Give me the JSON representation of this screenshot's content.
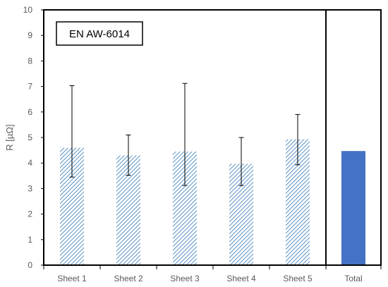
{
  "chart_data": {
    "type": "bar",
    "ylabel": "R [µΩ]",
    "annotation": "EN AW-6014",
    "ylim": [
      0,
      10
    ],
    "yticks": [
      0,
      1,
      2,
      3,
      4,
      5,
      6,
      7,
      8,
      9,
      10
    ],
    "categories": [
      "Sheet 1",
      "Sheet 2",
      "Sheet 3",
      "Sheet 4",
      "Sheet 5",
      "Total"
    ],
    "values": [
      4.6,
      4.3,
      4.45,
      3.97,
      4.93,
      4.47
    ],
    "error_low": [
      3.45,
      3.52,
      3.12,
      3.12,
      3.93,
      null
    ],
    "error_high": [
      7.03,
      5.1,
      7.12,
      5.0,
      5.9,
      null
    ],
    "bar_styles": [
      "hatched",
      "hatched",
      "hatched",
      "hatched",
      "hatched",
      "solid"
    ],
    "divider_after_category": "Sheet 5",
    "colors": {
      "hatch": "#2e75b6",
      "solid": "#4472c4",
      "axis": "#000000",
      "error": "#000000"
    },
    "grid": false,
    "legend": "none"
  }
}
